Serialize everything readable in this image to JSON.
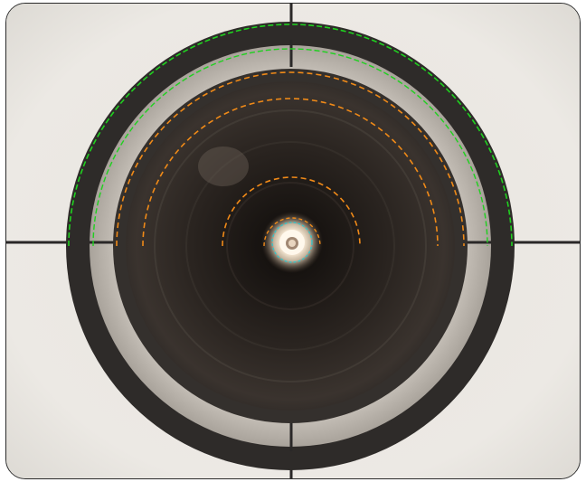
{
  "image": {
    "subject": "",
    "overlay_colors": {
      "outer_arc": "#1fd11f",
      "inner_arcs": "#f08a18",
      "center_ring": "#35c4c8"
    },
    "palette": {
      "background_light": "#ece9e4",
      "ring_dark": "#2e2b29",
      "ring_light": "#bfb8b0",
      "lens_dark": "#1e1a18",
      "light_core": "#fff6e8"
    }
  }
}
